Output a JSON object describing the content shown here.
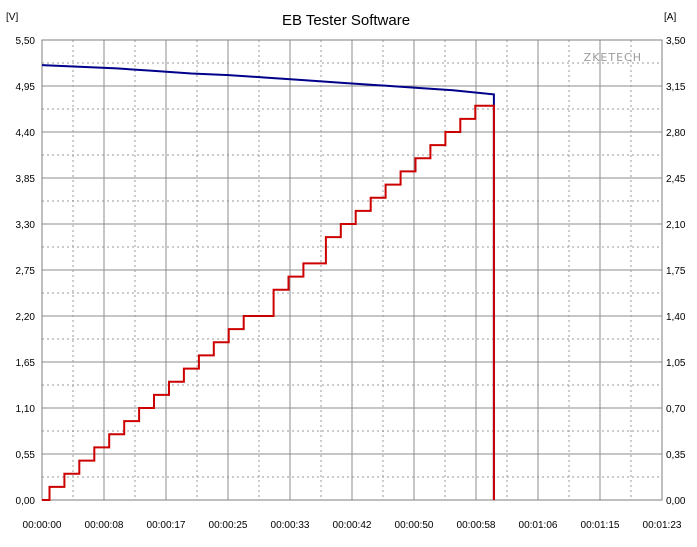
{
  "chart_data": {
    "type": "line",
    "title": "EB Tester Software",
    "watermark": "ZKETECH",
    "left_unit": "[V]",
    "right_unit": "[A]",
    "xlim_seconds": [
      0,
      83
    ],
    "ylim_left": [
      0,
      5.5
    ],
    "ylim_right": [
      0,
      3.5
    ],
    "x_ticks": [
      "00:00:00",
      "00:00:08",
      "00:00:17",
      "00:00:25",
      "00:00:33",
      "00:00:42",
      "00:00:50",
      "00:00:58",
      "00:01:06",
      "00:01:15",
      "00:01:23"
    ],
    "y_left_ticks": [
      "0,00",
      "0,55",
      "1,10",
      "1,65",
      "2,20",
      "2,75",
      "3,30",
      "3,85",
      "4,40",
      "4,95",
      "5,50"
    ],
    "y_right_ticks": [
      "0,00",
      "0,35",
      "0,70",
      "1,05",
      "1,40",
      "1,75",
      "2,10",
      "2,45",
      "2,80",
      "3,15",
      "3,50"
    ],
    "grid": true,
    "series": [
      {
        "axis": "left",
        "color": "#00008b",
        "points": [
          [
            0,
            5.2
          ],
          [
            5,
            5.18
          ],
          [
            10,
            5.16
          ],
          [
            15,
            5.13
          ],
          [
            20,
            5.1
          ],
          [
            25,
            5.08
          ],
          [
            30,
            5.05
          ],
          [
            35,
            5.02
          ],
          [
            40,
            4.99
          ],
          [
            45,
            4.96
          ],
          [
            50,
            4.93
          ],
          [
            55,
            4.9
          ],
          [
            60.5,
            4.85
          ],
          [
            60.5,
            0.0
          ]
        ]
      },
      {
        "axis": "right",
        "color": "#cc0000",
        "step": true,
        "points": [
          [
            0,
            0.0
          ],
          [
            1,
            0.1
          ],
          [
            3,
            0.2
          ],
          [
            5,
            0.3
          ],
          [
            7,
            0.4
          ],
          [
            9,
            0.5
          ],
          [
            11,
            0.6
          ],
          [
            13,
            0.7
          ],
          [
            15,
            0.8
          ],
          [
            17,
            0.9
          ],
          [
            19,
            1.0
          ],
          [
            21,
            1.1
          ],
          [
            23,
            1.2
          ],
          [
            25,
            1.3
          ],
          [
            27,
            1.4
          ],
          [
            31,
            1.6
          ],
          [
            33,
            1.7
          ],
          [
            35,
            1.8
          ],
          [
            38,
            2.0
          ],
          [
            40,
            2.1
          ],
          [
            42,
            2.2
          ],
          [
            44,
            2.3
          ],
          [
            46,
            2.4
          ],
          [
            48,
            2.5
          ],
          [
            50,
            2.6
          ],
          [
            52,
            2.7
          ],
          [
            54,
            2.8
          ],
          [
            56,
            2.9
          ],
          [
            58,
            3.0
          ],
          [
            60.5,
            3.0
          ],
          [
            60.5,
            0.0
          ]
        ]
      }
    ]
  }
}
